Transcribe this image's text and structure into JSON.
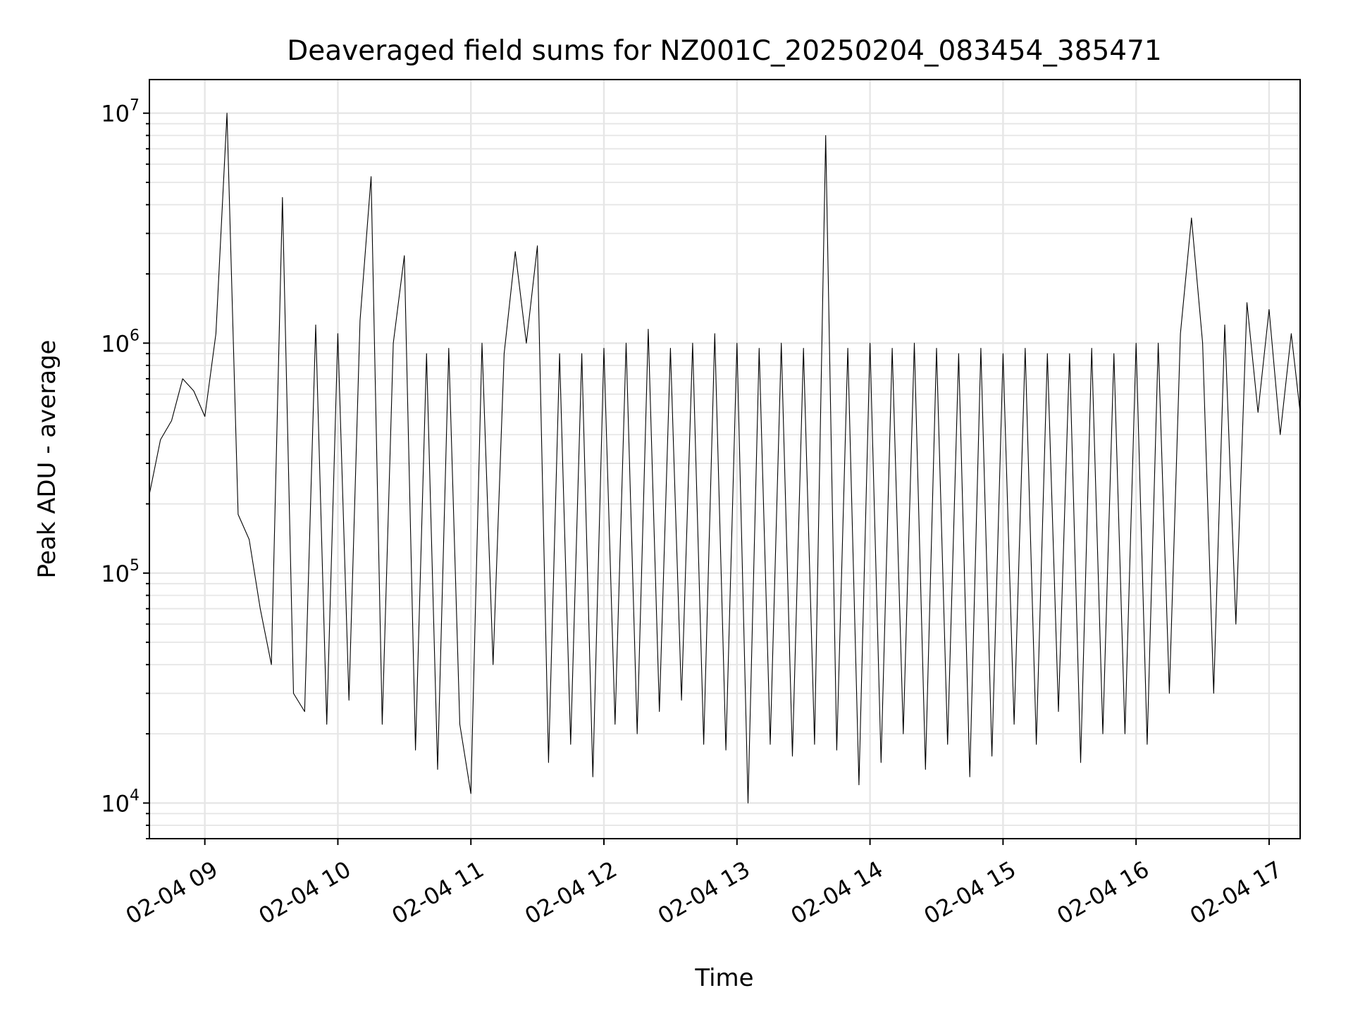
{
  "chart_data": {
    "type": "line",
    "title": "Deaveraged field sums for NZ001C_20250204_083454_385471",
    "xlabel": "Time",
    "ylabel": "Peak ADU - average",
    "yscale": "log",
    "grid": true,
    "x_tick_labels": [
      "02-04 09",
      "02-04 10",
      "02-04 11",
      "02-04 12",
      "02-04 13",
      "02-04 14",
      "02-04 15",
      "02-04 16",
      "02-04 17"
    ],
    "y_ticks": [
      {
        "base": "10",
        "exp": "4",
        "value": 10000
      },
      {
        "base": "10",
        "exp": "5",
        "value": 100000
      },
      {
        "base": "10",
        "exp": "6",
        "value": 1000000
      },
      {
        "base": "10",
        "exp": "7",
        "value": 10000000
      }
    ],
    "xlim": [
      "2025-02-04 08:35",
      "2025-02-04 17:14"
    ],
    "ylim": [
      7000,
      14000000
    ],
    "series": [
      {
        "color": "#000000",
        "x": [
          "2025-02-04 08:35",
          "2025-02-04 08:40",
          "2025-02-04 08:45",
          "2025-02-04 08:50",
          "2025-02-04 08:55",
          "2025-02-04 09:00",
          "2025-02-04 09:05",
          "2025-02-04 09:10",
          "2025-02-04 09:15",
          "2025-02-04 09:20",
          "2025-02-04 09:25",
          "2025-02-04 09:30",
          "2025-02-04 09:35",
          "2025-02-04 09:40",
          "2025-02-04 09:45",
          "2025-02-04 09:50",
          "2025-02-04 09:55",
          "2025-02-04 10:00",
          "2025-02-04 10:05",
          "2025-02-04 10:10",
          "2025-02-04 10:15",
          "2025-02-04 10:20",
          "2025-02-04 10:25",
          "2025-02-04 10:30",
          "2025-02-04 10:35",
          "2025-02-04 10:40",
          "2025-02-04 10:45",
          "2025-02-04 10:50",
          "2025-02-04 10:55",
          "2025-02-04 11:00",
          "2025-02-04 11:05",
          "2025-02-04 11:10",
          "2025-02-04 11:15",
          "2025-02-04 11:20",
          "2025-02-04 11:25",
          "2025-02-04 11:30",
          "2025-02-04 11:35",
          "2025-02-04 11:40",
          "2025-02-04 11:45",
          "2025-02-04 11:50",
          "2025-02-04 11:55",
          "2025-02-04 12:00",
          "2025-02-04 12:05",
          "2025-02-04 12:10",
          "2025-02-04 12:15",
          "2025-02-04 12:20",
          "2025-02-04 12:25",
          "2025-02-04 12:30",
          "2025-02-04 12:35",
          "2025-02-04 12:40",
          "2025-02-04 12:45",
          "2025-02-04 12:50",
          "2025-02-04 12:55",
          "2025-02-04 13:00",
          "2025-02-04 13:05",
          "2025-02-04 13:10",
          "2025-02-04 13:15",
          "2025-02-04 13:20",
          "2025-02-04 13:25",
          "2025-02-04 13:30",
          "2025-02-04 13:35",
          "2025-02-04 13:40",
          "2025-02-04 13:45",
          "2025-02-04 13:50",
          "2025-02-04 13:55",
          "2025-02-04 14:00",
          "2025-02-04 14:05",
          "2025-02-04 14:10",
          "2025-02-04 14:15",
          "2025-02-04 14:20",
          "2025-02-04 14:25",
          "2025-02-04 14:30",
          "2025-02-04 14:35",
          "2025-02-04 14:40",
          "2025-02-04 14:45",
          "2025-02-04 14:50",
          "2025-02-04 14:55",
          "2025-02-04 15:00",
          "2025-02-04 15:05",
          "2025-02-04 15:10",
          "2025-02-04 15:15",
          "2025-02-04 15:20",
          "2025-02-04 15:25",
          "2025-02-04 15:30",
          "2025-02-04 15:35",
          "2025-02-04 15:40",
          "2025-02-04 15:45",
          "2025-02-04 15:50",
          "2025-02-04 15:55",
          "2025-02-04 16:00",
          "2025-02-04 16:05",
          "2025-02-04 16:10",
          "2025-02-04 16:15",
          "2025-02-04 16:20",
          "2025-02-04 16:25",
          "2025-02-04 16:30",
          "2025-02-04 16:35",
          "2025-02-04 16:40",
          "2025-02-04 16:45",
          "2025-02-04 16:50",
          "2025-02-04 16:55",
          "2025-02-04 17:00",
          "2025-02-04 17:05",
          "2025-02-04 17:10",
          "2025-02-04 17:14"
        ],
        "y": [
          220000,
          380000,
          460000,
          700000,
          620000,
          480000,
          1100000,
          10000000,
          180000,
          140000,
          70000,
          40000,
          4300000,
          30000,
          25000,
          1200000,
          22000,
          1100000,
          28000,
          1250000,
          5300000,
          22000,
          1000000,
          2400000,
          17000,
          900000,
          14000,
          950000,
          22000,
          11000,
          1000000,
          40000,
          900000,
          2500000,
          1000000,
          2650000,
          15000,
          900000,
          18000,
          900000,
          13000,
          950000,
          22000,
          1000000,
          20000,
          1150000,
          25000,
          950000,
          28000,
          1000000,
          18000,
          1100000,
          17000,
          1000000,
          10000,
          950000,
          18000,
          1000000,
          16000,
          950000,
          18000,
          8000000,
          17000,
          950000,
          12000,
          1000000,
          15000,
          950000,
          20000,
          1000000,
          14000,
          950000,
          18000,
          900000,
          13000,
          950000,
          16000,
          900000,
          22000,
          950000,
          18000,
          900000,
          25000,
          900000,
          15000,
          950000,
          20000,
          900000,
          20000,
          1000000,
          18000,
          1000000,
          30000,
          1100000,
          3500000,
          1000000,
          30000,
          1200000,
          60000,
          1500000,
          500000,
          1400000,
          400000,
          1100000,
          500000
        ]
      }
    ]
  }
}
